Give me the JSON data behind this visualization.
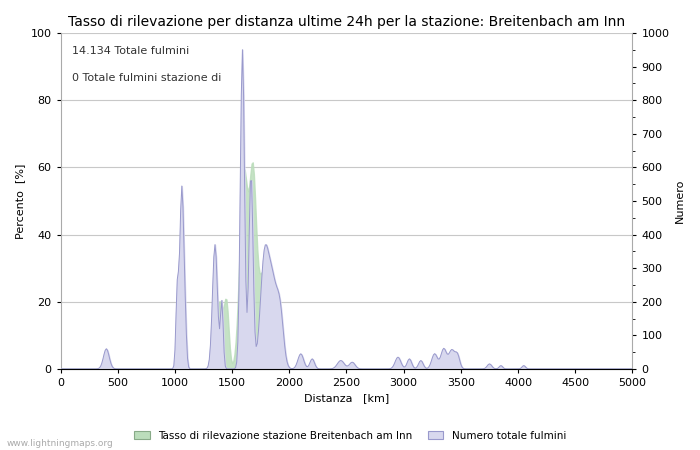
{
  "title": "Tasso di rilevazione per distanza ultime 24h per la stazione: Breitenbach am Inn",
  "xlabel": "Distanza   [km]",
  "ylabel_left": "Percento  [%]",
  "ylabel_right": "Numero",
  "annotation_line1": "14.134 Totale fulmini",
  "annotation_line2": "0 Totale fulmini stazione di",
  "xlim": [
    0,
    5000
  ],
  "ylim_left": [
    0,
    100
  ],
  "ylim_right": [
    0,
    1000
  ],
  "xticks": [
    0,
    500,
    1000,
    1500,
    2000,
    2500,
    3000,
    3500,
    4000,
    4500,
    5000
  ],
  "yticks_left": [
    0,
    20,
    40,
    60,
    80,
    100
  ],
  "yticks_right": [
    0,
    100,
    200,
    300,
    400,
    500,
    600,
    700,
    800,
    900,
    1000
  ],
  "legend_label_green": "Tasso di rilevazione stazione Breitenbach am Inn",
  "legend_label_blue": "Numero totale fulmini",
  "watermark": "www.lightningmaps.org",
  "bg_color": "#ffffff",
  "plot_bg_color": "#ffffff",
  "grid_color": "#c8c8c8",
  "line_color": "#9999cc",
  "fill_blue_color": "#d8d8ee",
  "fill_green_color": "#bbddbb",
  "title_fontsize": 10,
  "axis_fontsize": 8,
  "tick_fontsize": 8,
  "annotation_fontsize": 8
}
